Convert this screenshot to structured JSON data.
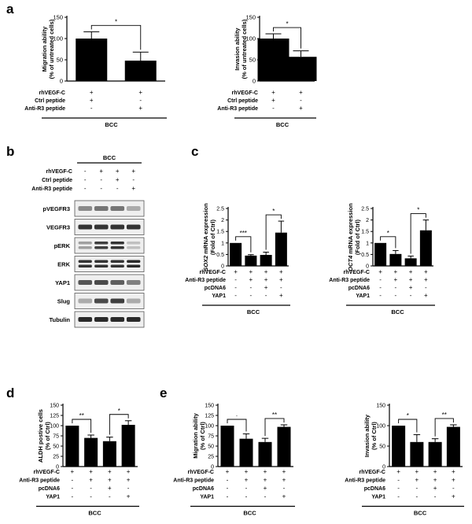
{
  "panels": {
    "a": "a",
    "b": "b",
    "c": "c",
    "d": "d",
    "e": "e"
  },
  "western": {
    "group": "BCC",
    "rows": [
      {
        "label": "rhVEGF-C",
        "signs": [
          "-",
          "+",
          "+",
          "+"
        ]
      },
      {
        "label": "Ctrl peptide",
        "signs": [
          "-",
          "-",
          "+",
          "-"
        ]
      },
      {
        "label": "Anti-R3 peptide",
        "signs": [
          "-",
          "-",
          "-",
          "+"
        ]
      }
    ],
    "bands": [
      "pVEGFR3",
      "VEGFR3",
      "pERK",
      "ERK",
      "YAP1",
      "Slug",
      "Tubulin"
    ]
  },
  "chart_data": [
    {
      "type": "bar",
      "panel": "a",
      "id": "a1",
      "ylabel": [
        "Migration ability",
        "(% of untreated cells)"
      ],
      "values": [
        100,
        48
      ],
      "errors": [
        16,
        20
      ],
      "ylim": [
        0,
        150
      ],
      "yticks": [
        0,
        50,
        100,
        150
      ],
      "sig": [
        {
          "from": 0,
          "to": 1,
          "label": "*"
        }
      ],
      "rows": [
        {
          "label": "rhVEGF-C",
          "signs": [
            "+",
            "+"
          ]
        },
        {
          "label": "Ctrl peptide",
          "signs": [
            "+",
            "-"
          ]
        },
        {
          "label": "Anti-R3 peptide",
          "signs": [
            "-",
            "+"
          ]
        }
      ],
      "group": "BCC"
    },
    {
      "type": "bar",
      "panel": "a",
      "id": "a2",
      "ylabel": [
        "Invasion ability",
        "(% of untreated cells)"
      ],
      "values": [
        100,
        57
      ],
      "errors": [
        11,
        14
      ],
      "ylim": [
        0,
        150
      ],
      "yticks": [
        0,
        50,
        100,
        150
      ],
      "sig": [
        {
          "from": 0,
          "to": 1,
          "label": "*"
        }
      ],
      "rows": [
        {
          "label": "rhVEGF-C",
          "signs": [
            "+",
            "+"
          ]
        },
        {
          "label": "Ctrl peptide",
          "signs": [
            "+",
            "-"
          ]
        },
        {
          "label": "Anti-R3 peptide",
          "signs": [
            "-",
            "+"
          ]
        }
      ],
      "group": "BCC"
    },
    {
      "type": "bar",
      "panel": "c",
      "id": "c1",
      "ylabel": [
        "SOX2 mRNA expression",
        "(Fold of Ctrl)"
      ],
      "ylabelItalic": "SOX2",
      "values": [
        1.0,
        0.45,
        0.48,
        1.45
      ],
      "errors": [
        0,
        0.04,
        0.12,
        0.5
      ],
      "ylim": [
        0,
        2.5
      ],
      "yticks": [
        0,
        0.5,
        1.0,
        1.5,
        2.0,
        2.5
      ],
      "sig": [
        {
          "from": 0,
          "to": 1,
          "label": "***"
        },
        {
          "from": 2,
          "to": 3,
          "label": "*"
        }
      ],
      "rows": [
        {
          "label": "rhVEGF-C",
          "signs": [
            "+",
            "+",
            "+",
            "+"
          ]
        },
        {
          "label": "Anti-R3 peptide",
          "signs": [
            "-",
            "+",
            "+",
            "+"
          ]
        },
        {
          "label": "pcDNA6",
          "signs": [
            "-",
            "-",
            "+",
            "-"
          ]
        },
        {
          "label": "YAP1",
          "signs": [
            "-",
            "-",
            "-",
            "+"
          ]
        }
      ],
      "group": "BCC"
    },
    {
      "type": "bar",
      "panel": "c",
      "id": "c2",
      "ylabel": [
        "OCT4 mRNA expression",
        "(Fold of Ctrl)"
      ],
      "ylabelItalic": "OCT4",
      "values": [
        1.0,
        0.52,
        0.33,
        1.55
      ],
      "errors": [
        0,
        0.15,
        0.1,
        0.45
      ],
      "ylim": [
        0,
        2.5
      ],
      "yticks": [
        0,
        0.5,
        1.0,
        1.5,
        2.0,
        2.5
      ],
      "sig": [
        {
          "from": 0,
          "to": 1,
          "label": "*"
        },
        {
          "from": 2,
          "to": 3,
          "label": "*"
        }
      ],
      "rows": [
        {
          "label": "rhVEGF-C",
          "signs": [
            "+",
            "+",
            "+",
            "+"
          ]
        },
        {
          "label": "Anti-R3 peptide",
          "signs": [
            "-",
            "+",
            "+",
            "+"
          ]
        },
        {
          "label": "pcDNA6",
          "signs": [
            "-",
            "-",
            "+",
            "-"
          ]
        },
        {
          "label": "YAP1",
          "signs": [
            "-",
            "-",
            "-",
            "+"
          ]
        }
      ],
      "group": "BCC"
    },
    {
      "type": "bar",
      "panel": "d",
      "id": "d1",
      "ylabel": [
        "ALDH postive cells",
        "(% of Ctrl)"
      ],
      "values": [
        100,
        70,
        62,
        102
      ],
      "errors": [
        0,
        7,
        10,
        10
      ],
      "ylim": [
        0,
        150
      ],
      "yticks": [
        0,
        25,
        50,
        75,
        100,
        125,
        150
      ],
      "sig": [
        {
          "from": 0,
          "to": 1,
          "label": "**"
        },
        {
          "from": 2,
          "to": 3,
          "label": "*"
        }
      ],
      "rows": [
        {
          "label": "rhVEGF-C",
          "signs": [
            "+",
            "+",
            "+",
            "+"
          ]
        },
        {
          "label": "Anti-R3 peptide",
          "signs": [
            "-",
            "+",
            "+",
            "+"
          ]
        },
        {
          "label": "pcDNA6",
          "signs": [
            "-",
            "-",
            "+",
            "-"
          ]
        },
        {
          "label": "YAP1",
          "signs": [
            "-",
            "-",
            "-",
            "+"
          ]
        }
      ],
      "group": "BCC"
    },
    {
      "type": "bar",
      "panel": "e",
      "id": "e1",
      "ylabel": [
        "Migration ability",
        "(% of Ctrl)"
      ],
      "values": [
        100,
        68,
        60,
        97
      ],
      "errors": [
        0,
        12,
        9,
        5
      ],
      "ylim": [
        0,
        150
      ],
      "yticks": [
        0,
        25,
        50,
        75,
        100,
        125,
        150
      ],
      "sig": [
        {
          "from": 0,
          "to": 1,
          "label": "·"
        },
        {
          "from": 2,
          "to": 3,
          "label": "**"
        }
      ],
      "rows": [
        {
          "label": "rhVEGF-C",
          "signs": [
            "+",
            "+",
            "+",
            "+"
          ]
        },
        {
          "label": "Anti-R3 peptide",
          "signs": [
            "-",
            "+",
            "+",
            "+"
          ]
        },
        {
          "label": "pcDNA6",
          "signs": [
            "-",
            "-",
            "+",
            "-"
          ]
        },
        {
          "label": "YAP1",
          "signs": [
            "-",
            "-",
            "-",
            "+"
          ]
        }
      ],
      "group": "BCC"
    },
    {
      "type": "bar",
      "panel": "e",
      "id": "e2",
      "ylabel": [
        "Invasion ability",
        "(% of Ctrl)"
      ],
      "values": [
        100,
        60,
        60,
        97
      ],
      "errors": [
        0,
        18,
        8,
        5
      ],
      "ylim": [
        0,
        150
      ],
      "yticks": [
        0,
        50,
        100,
        150
      ],
      "sig": [
        {
          "from": 0,
          "to": 1,
          "label": "*"
        },
        {
          "from": 2,
          "to": 3,
          "label": "**"
        }
      ],
      "rows": [
        {
          "label": "rhVEGF-C",
          "signs": [
            "+",
            "+",
            "+",
            "+"
          ]
        },
        {
          "label": "Anti-R3 peptide",
          "signs": [
            "-",
            "+",
            "+",
            "+"
          ]
        },
        {
          "label": "pcDNA6",
          "signs": [
            "-",
            "-",
            "+",
            "-"
          ]
        },
        {
          "label": "YAP1",
          "signs": [
            "-",
            "-",
            "-",
            "+"
          ]
        }
      ],
      "group": "BCC"
    }
  ]
}
